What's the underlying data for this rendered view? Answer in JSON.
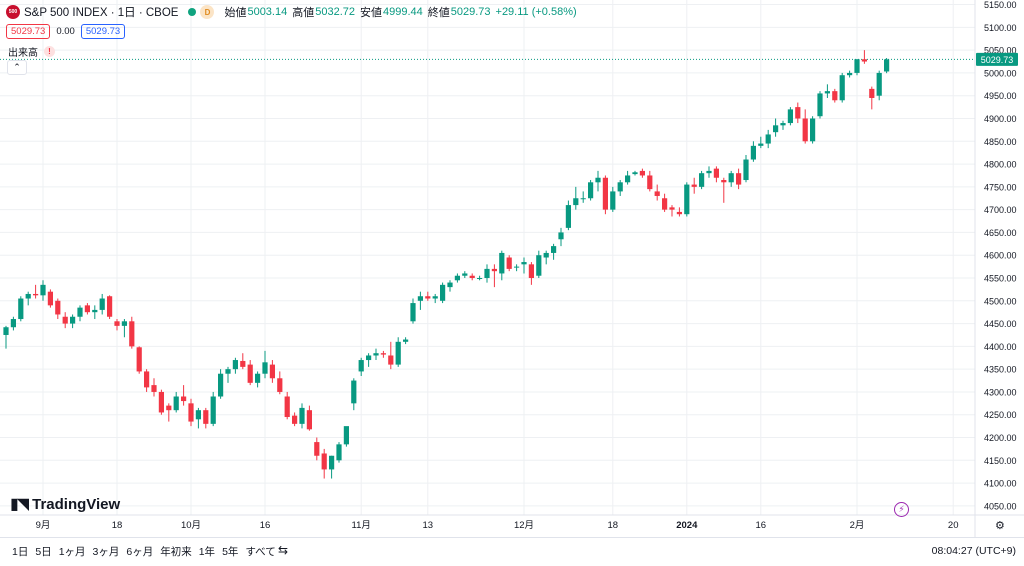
{
  "header": {
    "symbol_logo": "500",
    "symbol_title": "S&P 500 INDEX · 1日 · CBOE",
    "market_status_icon": "green-dot-icon",
    "interval_badge": "D",
    "open_label": "始値",
    "open_value": "5003.14",
    "high_label": "高値",
    "high_value": "5032.72",
    "low_label": "安値",
    "low_value": "4999.44",
    "close_label": "終値",
    "close_value": "5029.73",
    "change": "+29.11 (+0.58%)"
  },
  "price_row": {
    "bid": "5029.73",
    "spread": "0.00",
    "ask": "5029.73"
  },
  "volume": {
    "label": "出来高",
    "warning": "!"
  },
  "collapse_icon": "chevron-up-icon",
  "watermark": "TradingView",
  "bottom_bar": {
    "ranges": [
      "1日",
      "5日",
      "1ヶ月",
      "3ヶ月",
      "6ヶ月",
      "年初来",
      "1年",
      "5年",
      "すべて"
    ],
    "calendar_icon": "calendar-range-icon",
    "clock": "08:04:27 (UTC+9)"
  },
  "colors": {
    "up": "#089981",
    "down": "#f23645",
    "grid": "#eef0f3",
    "last_price": "#089981",
    "accent": "#2962ff"
  },
  "chart_data": {
    "type": "candlestick",
    "title": "S&P 500 INDEX · 1日 · CBOE",
    "ylabel": "",
    "xlabel": "",
    "ylim": [
      4030,
      5160
    ],
    "yticks": [
      4050,
      4100,
      4150,
      4200,
      4250,
      4300,
      4350,
      4400,
      4450,
      4500,
      4550,
      4600,
      4650,
      4700,
      4750,
      4800,
      4850,
      4900,
      4950,
      5000,
      5050,
      5100,
      5150
    ],
    "xticks": [
      {
        "index": 5,
        "label": "9月"
      },
      {
        "index": 15,
        "label": "18"
      },
      {
        "index": 25,
        "label": "10月"
      },
      {
        "index": 35,
        "label": "16"
      },
      {
        "index": 48,
        "label": "11月"
      },
      {
        "index": 57,
        "label": "13"
      },
      {
        "index": 70,
        "label": "12月"
      },
      {
        "index": 82,
        "label": "18"
      },
      {
        "index": 92,
        "label": "2024"
      },
      {
        "index": 102,
        "label": "16"
      },
      {
        "index": 115,
        "label": "2月"
      },
      {
        "index": 128,
        "label": "20"
      }
    ],
    "last_price": 5029.73,
    "grid": true,
    "candles": [
      [
        4425,
        4445,
        4395,
        4442
      ],
      [
        4442,
        4465,
        4435,
        4460
      ],
      [
        4460,
        4510,
        4455,
        4505
      ],
      [
        4505,
        4520,
        4490,
        4515
      ],
      [
        4515,
        4535,
        4505,
        4512
      ],
      [
        4512,
        4545,
        4500,
        4535
      ],
      [
        4520,
        4525,
        4485,
        4490
      ],
      [
        4500,
        4505,
        4460,
        4470
      ],
      [
        4465,
        4475,
        4440,
        4450
      ],
      [
        4450,
        4470,
        4440,
        4465
      ],
      [
        4465,
        4490,
        4455,
        4485
      ],
      [
        4490,
        4495,
        4470,
        4475
      ],
      [
        4475,
        4490,
        4460,
        4480
      ],
      [
        4480,
        4515,
        4470,
        4505
      ],
      [
        4510,
        4512,
        4460,
        4465
      ],
      [
        4455,
        4460,
        4435,
        4445
      ],
      [
        4445,
        4460,
        4420,
        4455
      ],
      [
        4455,
        4465,
        4395,
        4400
      ],
      [
        4398,
        4400,
        4340,
        4345
      ],
      [
        4345,
        4350,
        4300,
        4310
      ],
      [
        4315,
        4330,
        4290,
        4300
      ],
      [
        4300,
        4305,
        4250,
        4255
      ],
      [
        4270,
        4275,
        4235,
        4260
      ],
      [
        4260,
        4300,
        4255,
        4290
      ],
      [
        4290,
        4315,
        4270,
        4280
      ],
      [
        4275,
        4285,
        4225,
        4235
      ],
      [
        4240,
        4265,
        4220,
        4260
      ],
      [
        4260,
        4265,
        4220,
        4230
      ],
      [
        4230,
        4300,
        4225,
        4290
      ],
      [
        4290,
        4350,
        4285,
        4340
      ],
      [
        4340,
        4355,
        4320,
        4350
      ],
      [
        4350,
        4375,
        4340,
        4370
      ],
      [
        4368,
        4385,
        4350,
        4355
      ],
      [
        4360,
        4370,
        4315,
        4320
      ],
      [
        4320,
        4345,
        4310,
        4340
      ],
      [
        4340,
        4390,
        4330,
        4365
      ],
      [
        4360,
        4370,
        4320,
        4330
      ],
      [
        4330,
        4345,
        4295,
        4300
      ],
      [
        4290,
        4300,
        4240,
        4245
      ],
      [
        4248,
        4255,
        4225,
        4230
      ],
      [
        4230,
        4275,
        4220,
        4265
      ],
      [
        4260,
        4270,
        4215,
        4218
      ],
      [
        4190,
        4200,
        4150,
        4160
      ],
      [
        4165,
        4175,
        4110,
        4130
      ],
      [
        4130,
        4160,
        4110,
        4160
      ],
      [
        4150,
        4190,
        4145,
        4185
      ],
      [
        4185,
        4220,
        4180,
        4225
      ],
      [
        4275,
        4330,
        4260,
        4325
      ],
      [
        4345,
        4375,
        4335,
        4370
      ],
      [
        4370,
        4385,
        4355,
        4380
      ],
      [
        4380,
        4395,
        4370,
        4385
      ],
      [
        4385,
        4390,
        4375,
        4382
      ],
      [
        4380,
        4410,
        4350,
        4360
      ],
      [
        4360,
        4420,
        4355,
        4410
      ],
      [
        4410,
        4420,
        4405,
        4415
      ],
      [
        4455,
        4505,
        4450,
        4495
      ],
      [
        4500,
        4520,
        4480,
        4510
      ],
      [
        4510,
        4520,
        4500,
        4505
      ],
      [
        4505,
        4515,
        4495,
        4510
      ],
      [
        4500,
        4540,
        4495,
        4535
      ],
      [
        4530,
        4545,
        4520,
        4540
      ],
      [
        4545,
        4560,
        4540,
        4555
      ],
      [
        4555,
        4565,
        4550,
        4560
      ],
      [
        4555,
        4560,
        4545,
        4550
      ],
      [
        4550,
        4555,
        4545,
        4550
      ],
      [
        4550,
        4580,
        4540,
        4570
      ],
      [
        4570,
        4580,
        4530,
        4565
      ],
      [
        4560,
        4610,
        4545,
        4605
      ],
      [
        4595,
        4600,
        4565,
        4570
      ],
      [
        4575,
        4580,
        4565,
        4575
      ],
      [
        4580,
        4595,
        4560,
        4585
      ],
      [
        4580,
        4585,
        4535,
        4550
      ],
      [
        4555,
        4610,
        4550,
        4600
      ],
      [
        4595,
        4610,
        4580,
        4605
      ],
      [
        4605,
        4625,
        4590,
        4620
      ],
      [
        4635,
        4660,
        4620,
        4650
      ],
      [
        4660,
        4720,
        4655,
        4710
      ],
      [
        4710,
        4750,
        4700,
        4725
      ],
      [
        4725,
        4740,
        4715,
        4725
      ],
      [
        4725,
        4765,
        4720,
        4760
      ],
      [
        4760,
        4785,
        4740,
        4770
      ],
      [
        4770,
        4775,
        4690,
        4700
      ],
      [
        4700,
        4750,
        4695,
        4740
      ],
      [
        4740,
        4765,
        4730,
        4760
      ],
      [
        4760,
        4785,
        4755,
        4775
      ],
      [
        4778,
        4785,
        4775,
        4782
      ],
      [
        4785,
        4790,
        4770,
        4775
      ],
      [
        4775,
        4785,
        4740,
        4745
      ],
      [
        4740,
        4755,
        4720,
        4730
      ],
      [
        4725,
        4735,
        4695,
        4700
      ],
      [
        4705,
        4710,
        4685,
        4700
      ],
      [
        4695,
        4705,
        4685,
        4690
      ],
      [
        4690,
        4760,
        4685,
        4755
      ],
      [
        4755,
        4770,
        4735,
        4750
      ],
      [
        4750,
        4785,
        4745,
        4780
      ],
      [
        4780,
        4795,
        4770,
        4785
      ],
      [
        4790,
        4795,
        4760,
        4770
      ],
      [
        4765,
        4770,
        4715,
        4760
      ],
      [
        4760,
        4785,
        4750,
        4780
      ],
      [
        4780,
        4790,
        4745,
        4755
      ],
      [
        4765,
        4820,
        4760,
        4810
      ],
      [
        4810,
        4850,
        4805,
        4840
      ],
      [
        4840,
        4860,
        4835,
        4845
      ],
      [
        4845,
        4875,
        4835,
        4865
      ],
      [
        4870,
        4900,
        4860,
        4885
      ],
      [
        4885,
        4895,
        4875,
        4890
      ],
      [
        4890,
        4925,
        4885,
        4920
      ],
      [
        4925,
        4935,
        4890,
        4900
      ],
      [
        4900,
        4920,
        4845,
        4850
      ],
      [
        4850,
        4905,
        4845,
        4900
      ],
      [
        4905,
        4960,
        4900,
        4955
      ],
      [
        4955,
        4975,
        4945,
        4960
      ],
      [
        4960,
        4965,
        4935,
        4940
      ],
      [
        4940,
        5000,
        4935,
        4995
      ],
      [
        4995,
        5005,
        4990,
        5000
      ],
      [
        5000,
        5030,
        4995,
        5030
      ],
      [
        5030,
        5050,
        5020,
        5025
      ],
      [
        4965,
        4970,
        4920,
        4945
      ],
      [
        4950,
        5005,
        4940,
        5000
      ],
      [
        5003.14,
        5032.72,
        4999.44,
        5029.73
      ]
    ]
  }
}
